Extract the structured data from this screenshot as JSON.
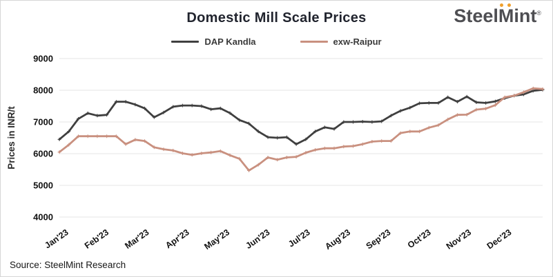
{
  "header": {
    "title": "Domestic Mill Scale Prices",
    "logo": {
      "steel": "Steel",
      "m": "M",
      "int": "int",
      "registered": "®",
      "dot_color": "#f0a02c",
      "text_color": "#4e4e52"
    }
  },
  "legend": [
    {
      "label": "DAP Kandla",
      "color": "#3f3f3f"
    },
    {
      "label": "exw-Raipur",
      "color": "#c9907f"
    }
  ],
  "footer": {
    "source": "Source: SteelMint Research"
  },
  "colors": {
    "grid": "#e4e4e4",
    "axis_text": "#111111",
    "background": "#ffffff",
    "accent_orange": "#f0a02c"
  },
  "chart_data": {
    "type": "line",
    "title": "Domestic Mill Scale Prices",
    "ylabel": "Prices in INR/t",
    "xlabel": "",
    "ylim": [
      4000,
      9000
    ],
    "ytick_step": 1000,
    "yticks": [
      4000,
      5000,
      6000,
      7000,
      8000,
      9000
    ],
    "grid": true,
    "legend_position": "top",
    "x_unit": "weekly (52 points, Jan–Dec 2023)",
    "categories_months": [
      "Jan'23",
      "Feb'23",
      "Mar'23",
      "Apr'23",
      "May'23",
      "Jun'23",
      "Jul'23",
      "Aug'23",
      "Sep'23",
      "Oct'23",
      "Nov'23",
      "Dec'23"
    ],
    "series": [
      {
        "name": "DAP Kandla",
        "color": "#3f3f3f",
        "values": [
          6450,
          6700,
          7100,
          7275,
          7200,
          7225,
          7640,
          7640,
          7550,
          7430,
          7150,
          7300,
          7480,
          7520,
          7520,
          7500,
          7400,
          7430,
          7280,
          7060,
          6950,
          6700,
          6520,
          6500,
          6520,
          6300,
          6450,
          6700,
          6830,
          6780,
          7000,
          7000,
          7010,
          7000,
          7020,
          7200,
          7350,
          7450,
          7590,
          7600,
          7600,
          7780,
          7640,
          7800,
          7620,
          7600,
          7650,
          7750,
          7830,
          7870,
          7985,
          8015
        ]
      },
      {
        "name": "exw-Raipur",
        "color": "#c9907f",
        "values": [
          6050,
          6280,
          6550,
          6550,
          6550,
          6550,
          6550,
          6300,
          6440,
          6400,
          6200,
          6140,
          6100,
          6010,
          5960,
          6010,
          6040,
          6080,
          5950,
          5840,
          5470,
          5650,
          5880,
          5810,
          5880,
          5900,
          6030,
          6120,
          6170,
          6170,
          6225,
          6240,
          6300,
          6380,
          6400,
          6400,
          6650,
          6700,
          6700,
          6820,
          6900,
          7080,
          7225,
          7230,
          7390,
          7420,
          7530,
          7780,
          7830,
          7940,
          8060,
          8040
        ]
      }
    ]
  }
}
